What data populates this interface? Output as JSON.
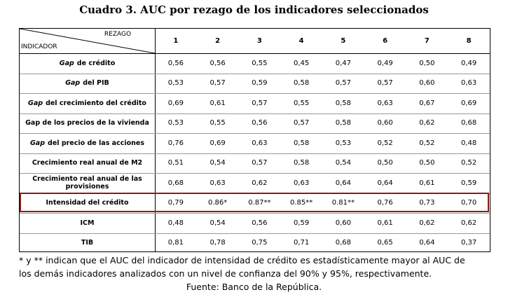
{
  "title": "Cuadro 3. AUC por rezago de los indicadores seleccionados",
  "table": {
    "corner_top": "REZAGO",
    "corner_bottom": "INDICADOR",
    "columns": [
      "1",
      "2",
      "3",
      "4",
      "5",
      "6",
      "7",
      "8"
    ],
    "rows": [
      {
        "prefix": "Gap",
        "label": "de crédito",
        "values": [
          "0,56",
          "0,56",
          "0,55",
          "0,45",
          "0,47",
          "0,49",
          "0,50",
          "0,49"
        ]
      },
      {
        "prefix": "Gap",
        "label": "del PIB",
        "values": [
          "0,53",
          "0,57",
          "0,59",
          "0,58",
          "0,57",
          "0,57",
          "0,60",
          "0,63"
        ]
      },
      {
        "prefix": "Gap",
        "label": "del crecimiento del crédito",
        "values": [
          "0,69",
          "0,61",
          "0,57",
          "0,55",
          "0,58",
          "0,63",
          "0,67",
          "0,69"
        ]
      },
      {
        "label": "Gap de los precios de la vivienda",
        "values": [
          "0,53",
          "0,55",
          "0,56",
          "0,57",
          "0,58",
          "0,60",
          "0,62",
          "0,68"
        ]
      },
      {
        "prefix": "Gap",
        "label": "del precio de las acciones",
        "values": [
          "0,76",
          "0,69",
          "0,63",
          "0,58",
          "0,53",
          "0,52",
          "0,52",
          "0,48"
        ]
      },
      {
        "label": "Crecimiento real anual de M2",
        "values": [
          "0,51",
          "0,54",
          "0,57",
          "0,58",
          "0,54",
          "0,50",
          "0,50",
          "0,52"
        ]
      },
      {
        "label": "Crecimiento real anual de las provisiones",
        "values": [
          "0,68",
          "0,63",
          "0,62",
          "0,63",
          "0,64",
          "0,64",
          "0,61",
          "0,59"
        ]
      },
      {
        "label": "Intensidad del crédito",
        "values": [
          "0,79",
          "0.86*",
          "0.87**",
          "0.85**",
          "0.81**",
          "0,76",
          "0,73",
          "0,70"
        ]
      },
      {
        "label": "ICM",
        "values": [
          "0,48",
          "0,54",
          "0,56",
          "0,59",
          "0,60",
          "0,61",
          "0,62",
          "0,62"
        ]
      },
      {
        "label": "TIB",
        "values": [
          "0,81",
          "0,78",
          "0,75",
          "0,71",
          "0,68",
          "0,65",
          "0,64",
          "0,37"
        ]
      }
    ]
  },
  "notes": [
    "* y ** indican que el AUC del indicador de intensidad de crédito es estadísticamente mayor al AUC de",
    "los demás indicadores analizados con un nivel de confianza del 90% y 95%, respectivamente.",
    "Fuente: Banco de la República."
  ]
}
